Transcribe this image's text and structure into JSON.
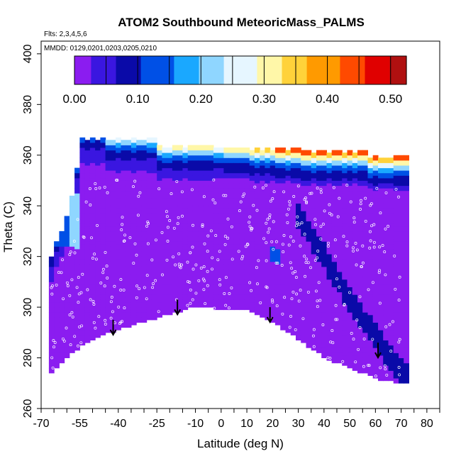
{
  "chart_data": {
    "type": "heatmap",
    "title": "ATOM2 Southbound MeteoricMass_PALMS",
    "flights_note": "Flts: 2,3,4,5,6",
    "dates_note": "MMDD: 0129,0201,0203,0205,0210",
    "xlabel": "Latitude (deg N)",
    "ylabel": "Theta (C)",
    "xlim": [
      -70,
      85
    ],
    "ylim": [
      260,
      405
    ],
    "x_ticks": [
      "-70",
      "-55",
      "-40",
      "-25",
      "-10",
      "0",
      "10",
      "20",
      "30",
      "40",
      "50",
      "60",
      "70",
      "80"
    ],
    "x_tick_values": [
      -70,
      -55,
      -40,
      -25,
      -10,
      0,
      10,
      20,
      30,
      40,
      50,
      60,
      70,
      80
    ],
    "y_ticks": [
      "260",
      "280",
      "300",
      "320",
      "340",
      "360",
      "380",
      "400"
    ],
    "y_tick_values": [
      260,
      280,
      300,
      320,
      340,
      360,
      380,
      400
    ],
    "colorbar": {
      "ticks": [
        "0.00",
        "0.10",
        "0.20",
        "0.30",
        "0.40",
        "0.50"
      ],
      "tick_values": [
        0.0,
        0.1,
        0.2,
        0.3,
        0.4,
        0.5
      ],
      "min": 0.0,
      "max": 0.525,
      "bins": 10,
      "colors": [
        "#8b1cf0",
        "#3a16e0",
        "#0a0aa8",
        "#0050e6",
        "#1aa8ff",
        "#8fd6ff",
        "#e6f6ff",
        "#fff7a8",
        "#ffd23a",
        "#ff9a00",
        "#ff4a00",
        "#e00000",
        "#b01010"
      ]
    },
    "arrows_latitude": [
      -42,
      -17,
      19,
      61
    ],
    "arrows_theta_top": [
      295,
      303,
      300,
      286
    ]
  }
}
